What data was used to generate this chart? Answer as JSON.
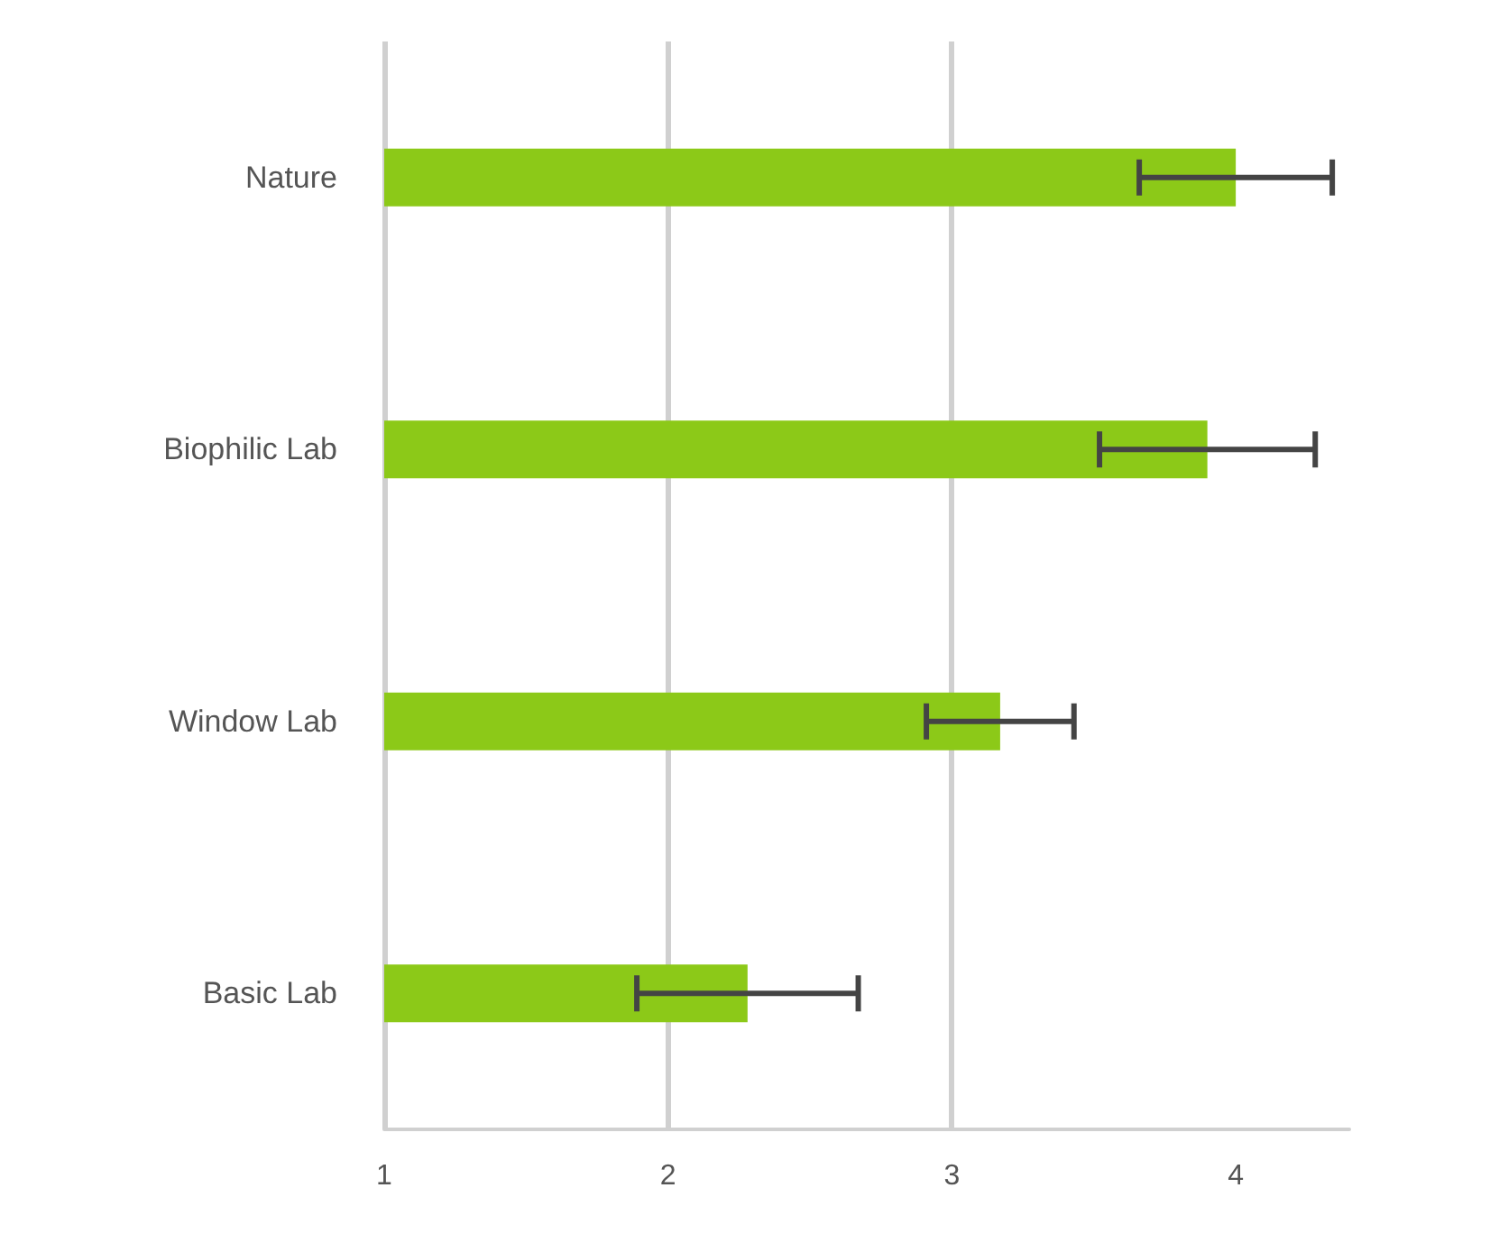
{
  "chart_data": {
    "type": "bar",
    "orientation": "horizontal",
    "categories": [
      "Nature",
      "Biophilic Lab",
      "Window Lab",
      "Basic Lab"
    ],
    "values": [
      4.0,
      3.9,
      3.17,
      2.28
    ],
    "errors": [
      0.34,
      0.38,
      0.26,
      0.39
    ],
    "color": "#8cc918",
    "xlim": [
      1,
      4.4
    ],
    "xticks": [
      1,
      2,
      3,
      4
    ],
    "grid": "x"
  }
}
